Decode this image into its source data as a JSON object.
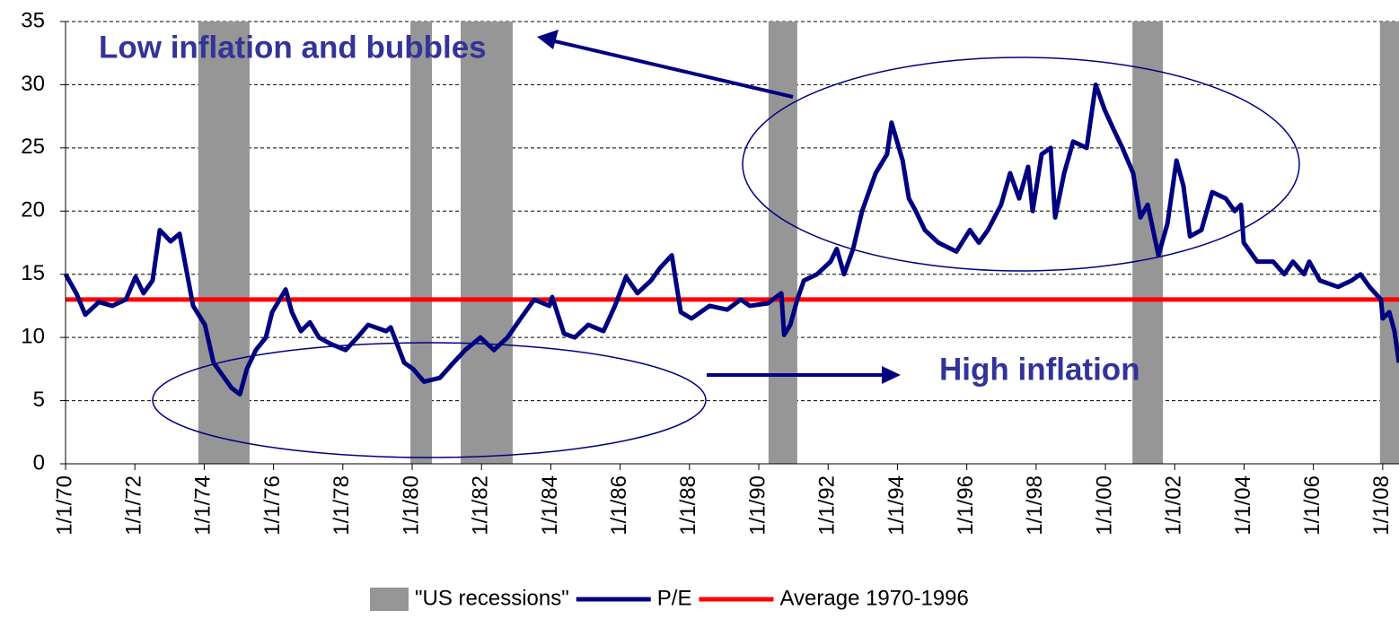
{
  "chart_data": {
    "type": "line",
    "xlim": [
      1970,
      2008.47
    ],
    "xticks": [
      {
        "value": 1970,
        "label": "1/1/70"
      },
      {
        "value": 1972,
        "label": "1/1/72"
      },
      {
        "value": 1974,
        "label": "1/1/74"
      },
      {
        "value": 1976,
        "label": "1/1/76"
      },
      {
        "value": 1978,
        "label": "1/1/78"
      },
      {
        "value": 1980,
        "label": "1/1/80"
      },
      {
        "value": 1982,
        "label": "1/1/82"
      },
      {
        "value": 1984,
        "label": "1/1/84"
      },
      {
        "value": 1986,
        "label": "1/1/86"
      },
      {
        "value": 1988,
        "label": "1/1/88"
      },
      {
        "value": 1990,
        "label": "1/1/90"
      },
      {
        "value": 1992,
        "label": "1/1/92"
      },
      {
        "value": 1994,
        "label": "1/1/94"
      },
      {
        "value": 1996,
        "label": "1/1/96"
      },
      {
        "value": 1998,
        "label": "1/1/98"
      },
      {
        "value": 2000,
        "label": "1/1/00"
      },
      {
        "value": 2002,
        "label": "1/1/02"
      },
      {
        "value": 2004,
        "label": "1/1/04"
      },
      {
        "value": 2006,
        "label": "1/1/06"
      },
      {
        "value": 2008,
        "label": "1/1/08"
      }
    ],
    "ylim": [
      0,
      35
    ],
    "yticks": [
      0,
      5,
      10,
      15,
      20,
      25,
      30,
      35
    ],
    "grid": true,
    "legend": "bottom",
    "series": [
      {
        "name": "\"US recessions\"",
        "color": "#969696",
        "ranges": [
          [
            1973.83,
            1975.31
          ],
          [
            1979.95,
            1980.57
          ],
          [
            1981.4,
            1982.9
          ],
          [
            1990.28,
            1991.11
          ],
          [
            2000.78,
            2001.66
          ],
          [
            2007.92,
            2008.47
          ]
        ]
      },
      {
        "name": "P/E",
        "color": "#000080",
        "x": [
          1970,
          1970.31,
          1970.57,
          1970.96,
          1971.35,
          1971.74,
          1972.02,
          1972.25,
          1972.51,
          1972.72,
          1973.03,
          1973.29,
          1973.68,
          1974.02,
          1974.27,
          1974.79,
          1975.03,
          1975.23,
          1975.49,
          1975.78,
          1975.96,
          1976.35,
          1976.53,
          1976.79,
          1977.05,
          1977.31,
          1977.64,
          1978.08,
          1978.42,
          1978.73,
          1979.25,
          1979.38,
          1979.77,
          1980.03,
          1980.34,
          1980.8,
          1981.19,
          1981.53,
          1981.97,
          1982.36,
          1982.75,
          1983.13,
          1983.52,
          1983.96,
          1984.04,
          1984.38,
          1984.69,
          1985.08,
          1985.52,
          1985.85,
          1986.17,
          1986.5,
          1986.89,
          1987.15,
          1987.49,
          1987.75,
          1988.06,
          1988.58,
          1989.09,
          1989.48,
          1989.74,
          1990.26,
          1990.65,
          1990.73,
          1990.91,
          1991.11,
          1991.3,
          1991.68,
          1992.07,
          1992.25,
          1992.46,
          1992.72,
          1992.98,
          1993.37,
          1993.7,
          1993.83,
          1994.15,
          1994.33,
          1994.53,
          1994.79,
          1995.18,
          1995.7,
          1996.09,
          1996.35,
          1996.61,
          1996.99,
          1997.25,
          1997.51,
          1997.77,
          1997.9,
          1998.16,
          1998.42,
          1998.55,
          1998.81,
          1999.07,
          1999.46,
          1999.72,
          1999.98,
          2000.23,
          2000.49,
          2000.8,
          2001.01,
          2001.22,
          2001.53,
          2001.79,
          2002.05,
          2002.25,
          2002.44,
          2002.77,
          2003.08,
          2003.47,
          2003.73,
          2003.91,
          2003.99,
          2004.38,
          2004.84,
          2005.16,
          2005.41,
          2005.73,
          2005.88,
          2006.19,
          2006.71,
          2007.1,
          2007.36,
          2007.62,
          2007.95,
          2008,
          2008.19,
          2008.34,
          2008.47
        ],
        "values": [
          15,
          13.5,
          11.8,
          12.8,
          12.5,
          13,
          14.8,
          13.5,
          14.5,
          18.5,
          17.6,
          18.2,
          12.5,
          11,
          8,
          6,
          5.5,
          7.5,
          9,
          10,
          12,
          13.8,
          12,
          10.5,
          11.2,
          10,
          9.5,
          9,
          10,
          11,
          10.5,
          10.8,
          8,
          7.5,
          6.5,
          6.8,
          8,
          9,
          10,
          9,
          10,
          11.5,
          13,
          12.5,
          13.2,
          10.3,
          10,
          11,
          10.5,
          12.5,
          14.8,
          13.5,
          14.5,
          15.5,
          16.5,
          12,
          11.5,
          12.5,
          12.2,
          13,
          12.5,
          12.7,
          13.5,
          10.2,
          11,
          13,
          14.5,
          15,
          16,
          17,
          15,
          17,
          20,
          23,
          24.5,
          27,
          24,
          21,
          20,
          18.5,
          17.5,
          16.8,
          18.5,
          17.5,
          18.5,
          20.5,
          23,
          21,
          23.5,
          20,
          24.5,
          25,
          19.5,
          23,
          25.5,
          25,
          30,
          28,
          26.5,
          25,
          23,
          19.5,
          20.5,
          16.5,
          19,
          24,
          22,
          18,
          18.5,
          21.5,
          21,
          20,
          20.5,
          17.5,
          16,
          16,
          15,
          16,
          15,
          16,
          14.5,
          14,
          14.5,
          15,
          14,
          13,
          11.5,
          12,
          10.5,
          8
        ]
      },
      {
        "name": "Average 1970-1996",
        "color": "#ff0000",
        "x": [
          1970,
          2008.47
        ],
        "values": [
          13,
          13
        ]
      }
    ],
    "annotations": [
      {
        "text": "Low inflation and bubbles"
      },
      {
        "text": "High inflation"
      }
    ]
  }
}
